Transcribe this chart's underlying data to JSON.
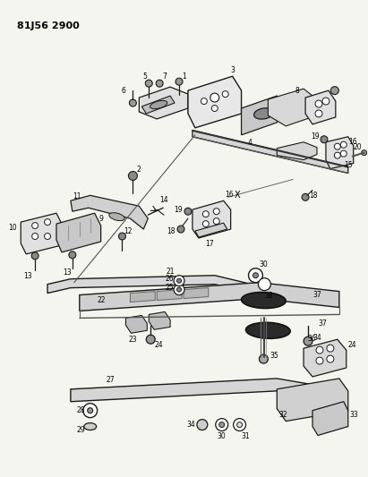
{
  "title": "81J56 2900",
  "bg_color": "#f5f5f0",
  "line_color": "#1a1a1a",
  "text_color": "#000000",
  "fig_width": 4.11,
  "fig_height": 5.33,
  "dpi": 100
}
